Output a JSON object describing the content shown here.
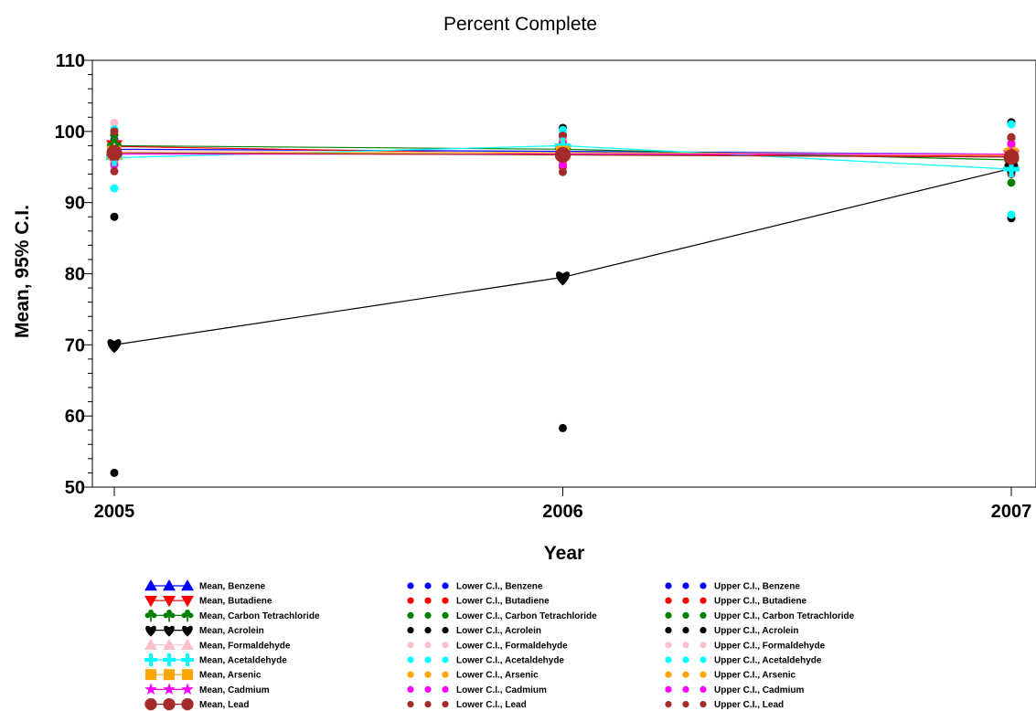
{
  "chart_data": {
    "type": "line",
    "title": "Percent Complete",
    "xlabel": "Year",
    "ylabel": "Mean, 95% C.I.",
    "x": [
      2005,
      2006,
      2007
    ],
    "x_tick_labels": [
      "2005",
      "2006",
      "2007"
    ],
    "ylim": [
      50,
      110
    ],
    "y_ticks": [
      50,
      60,
      70,
      80,
      90,
      100,
      110
    ],
    "y_tick_labels": [
      "50",
      "60",
      "70",
      "80",
      "90",
      "100",
      "110"
    ],
    "grid": false,
    "legend_position": "bottom",
    "series": [
      {
        "name": "Benzene",
        "color": "#0000ff",
        "marker": "triangle-up",
        "mean": [
          97.5,
          97.2,
          96.8
        ],
        "lower": [
          96.0,
          95.5,
          95.5
        ],
        "upper": [
          98.8,
          99.0,
          98.0
        ]
      },
      {
        "name": "Butadiene",
        "color": "#ff0000",
        "marker": "triangle-down",
        "mean": [
          97.9,
          96.8,
          96.5
        ],
        "lower": [
          96.3,
          95.0,
          95.0
        ],
        "upper": [
          99.5,
          98.5,
          98.0
        ]
      },
      {
        "name": "Carbon Tetrachloride",
        "color": "#008000",
        "marker": "club",
        "mean": [
          98.0,
          97.5,
          96.0
        ],
        "lower": [
          96.5,
          95.5,
          92.8
        ],
        "upper": [
          99.5,
          99.5,
          99.0
        ]
      },
      {
        "name": "Acrolein",
        "color": "#000000",
        "marker": "heart",
        "mean": [
          70.0,
          79.5,
          94.8
        ],
        "lower": [
          52.0,
          58.3,
          87.8
        ],
        "upper": [
          88.0,
          100.5,
          101.3
        ]
      },
      {
        "name": "Formaldehyde",
        "color": "#ffc0cb",
        "marker": "triangle-up",
        "mean": [
          97.3,
          97.0,
          96.8
        ],
        "lower": [
          95.5,
          95.3,
          95.0
        ],
        "upper": [
          101.2,
          99.0,
          98.5
        ]
      },
      {
        "name": "Acetaldehyde",
        "color": "#00ffff",
        "marker": "plus",
        "mean": [
          96.3,
          98.0,
          94.7
        ],
        "lower": [
          92.0,
          95.3,
          88.3
        ],
        "upper": [
          100.3,
          100.2,
          101.0
        ]
      },
      {
        "name": "Arsenic",
        "color": "#ffa500",
        "marker": "square",
        "mean": [
          97.0,
          97.0,
          96.7
        ],
        "lower": [
          95.5,
          95.5,
          95.0
        ],
        "upper": [
          98.5,
          98.5,
          98.0
        ]
      },
      {
        "name": "Cadmium",
        "color": "#ff00ff",
        "marker": "star",
        "mean": [
          96.8,
          96.8,
          96.8
        ],
        "lower": [
          95.3,
          95.3,
          95.3
        ],
        "upper": [
          98.3,
          98.3,
          98.3
        ]
      },
      {
        "name": "Lead",
        "color": "#a52a2a",
        "marker": "circle",
        "mean": [
          97.0,
          96.7,
          96.4
        ],
        "lower": [
          94.4,
          94.3,
          94.0
        ],
        "upper": [
          100.0,
          99.4,
          99.2
        ]
      }
    ],
    "legend_prefixes": {
      "mean": "Mean, ",
      "lower": "Lower C.I., ",
      "upper": "Upper C.I., "
    }
  }
}
